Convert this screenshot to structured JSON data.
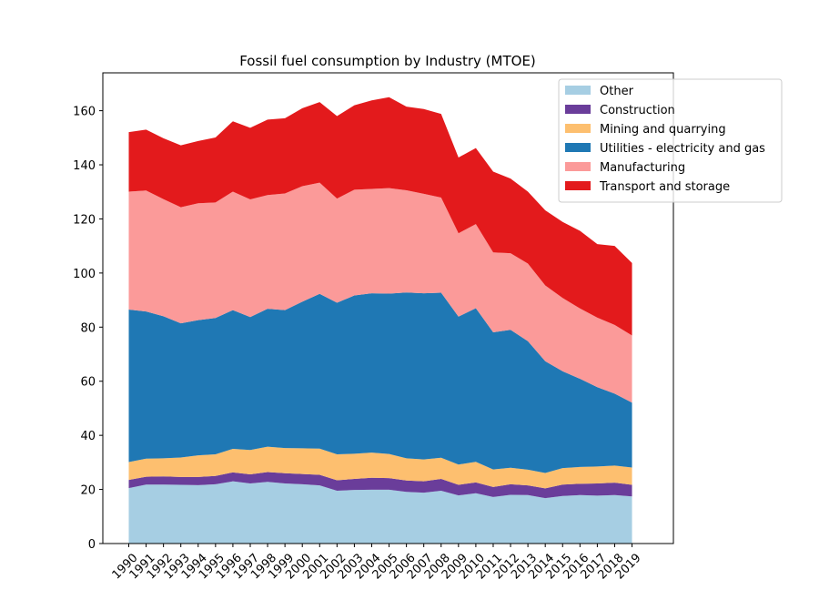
{
  "chart_data": {
    "type": "area",
    "stacked": true,
    "title": "Fossil fuel consumption by Industry (MTOE)",
    "xlabel": "",
    "ylabel": "",
    "categories": [
      "1990",
      "1991",
      "1992",
      "1993",
      "1994",
      "1995",
      "1996",
      "1997",
      "1998",
      "1999",
      "2000",
      "2001",
      "2002",
      "2003",
      "2004",
      "2005",
      "2006",
      "2007",
      "2008",
      "2009",
      "2010",
      "2011",
      "2012",
      "2013",
      "2014",
      "2015",
      "2016",
      "2017",
      "2018",
      "2019"
    ],
    "ylim": [
      0,
      174
    ],
    "yticks": [
      0,
      20,
      40,
      60,
      80,
      100,
      120,
      140,
      160
    ],
    "grid": false,
    "legend_position": "top-right",
    "series": [
      {
        "name": "Other",
        "color": "#a6cee3",
        "values": [
          20.5,
          21.8,
          21.8,
          21.7,
          21.6,
          21.9,
          23.0,
          22.2,
          22.8,
          22.2,
          21.9,
          21.5,
          19.5,
          19.8,
          19.9,
          19.9,
          19.1,
          18.8,
          19.5,
          17.8,
          18.6,
          17.2,
          18.0,
          17.9,
          16.8,
          17.6,
          17.9,
          17.7,
          17.9,
          17.4
        ]
      },
      {
        "name": "Construction",
        "color": "#6a3d9a",
        "values": [
          3.0,
          2.9,
          3.0,
          2.9,
          3.0,
          3.1,
          3.3,
          3.4,
          3.6,
          3.8,
          3.8,
          3.9,
          3.9,
          4.1,
          4.4,
          4.3,
          4.2,
          4.2,
          4.4,
          3.9,
          4.0,
          3.7,
          3.9,
          3.6,
          3.6,
          4.2,
          4.2,
          4.5,
          4.6,
          4.3
        ]
      },
      {
        "name": "Mining and quarrying",
        "color": "#fdbf6f",
        "values": [
          6.6,
          6.7,
          6.7,
          7.2,
          8.0,
          8.0,
          8.7,
          9.0,
          9.4,
          9.3,
          9.5,
          9.7,
          9.6,
          9.3,
          9.3,
          8.9,
          8.2,
          8.1,
          7.8,
          7.5,
          7.6,
          6.5,
          6.1,
          5.8,
          5.7,
          6.1,
          6.2,
          6.3,
          6.3,
          6.4
        ]
      },
      {
        "name": "Utilities - electricity and gas",
        "color": "#1f78b4",
        "values": [
          56.4,
          54.4,
          52.5,
          49.6,
          50.0,
          50.4,
          51.3,
          49.1,
          51.0,
          51.0,
          54.2,
          57.2,
          56.0,
          58.5,
          58.9,
          59.3,
          61.3,
          61.4,
          61.0,
          54.7,
          56.8,
          50.7,
          51.0,
          47.5,
          41.3,
          35.8,
          32.6,
          29.3,
          26.6,
          24.0
        ]
      },
      {
        "name": "Manufacturing",
        "color": "#fb9a99",
        "values": [
          43.6,
          44.7,
          43.3,
          42.9,
          43.2,
          42.7,
          43.8,
          43.5,
          42.0,
          43.1,
          42.7,
          41.1,
          38.5,
          39.1,
          38.6,
          39.0,
          37.8,
          36.8,
          35.2,
          30.8,
          31.1,
          29.5,
          28.3,
          28.7,
          28.0,
          27.1,
          26.0,
          25.7,
          25.4,
          24.8
        ]
      },
      {
        "name": "Transport and storage",
        "color": "#e31a1c",
        "values": [
          22.0,
          22.5,
          22.5,
          22.9,
          23.0,
          24.0,
          26.0,
          26.5,
          27.9,
          27.8,
          28.8,
          29.8,
          30.5,
          31.2,
          32.7,
          33.6,
          30.9,
          31.3,
          30.9,
          28.0,
          28.1,
          29.9,
          27.6,
          26.6,
          27.8,
          28.1,
          28.7,
          27.2,
          29.2,
          26.8
        ]
      }
    ]
  }
}
